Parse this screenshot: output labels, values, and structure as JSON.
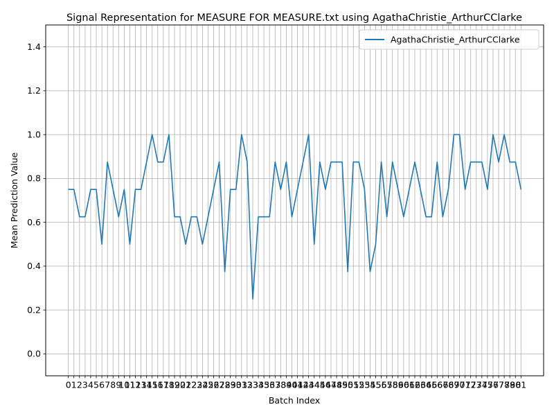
{
  "chart_data": {
    "type": "line",
    "title": "Signal Representation for MEASURE FOR MEASURE.txt using AgathaChristie_ArthurCClarke",
    "xlabel": "Batch Index",
    "ylabel": "Mean Prediction Value",
    "ylim": [
      -0.1,
      1.5
    ],
    "xlim": [
      -4.05,
      85.05
    ],
    "yticks": [
      0.0,
      0.2,
      0.4,
      0.6,
      0.8,
      1.0,
      1.2,
      1.4
    ],
    "grid": true,
    "legend_position": "top-right",
    "x": [
      0,
      1,
      2,
      3,
      4,
      5,
      6,
      7,
      8,
      9,
      10,
      11,
      12,
      13,
      14,
      15,
      16,
      17,
      18,
      19,
      20,
      21,
      22,
      23,
      24,
      25,
      26,
      27,
      28,
      29,
      30,
      31,
      32,
      33,
      34,
      35,
      36,
      37,
      38,
      39,
      40,
      41,
      42,
      43,
      44,
      45,
      46,
      47,
      48,
      49,
      50,
      51,
      52,
      53,
      54,
      55,
      56,
      57,
      58,
      59,
      60,
      61,
      62,
      63,
      64,
      65,
      66,
      67,
      68,
      69,
      70,
      71,
      72,
      73,
      74,
      75,
      76,
      77,
      78,
      79,
      80,
      81
    ],
    "series": [
      {
        "name": "AgathaChristie_ArthurCClarke",
        "color": "#1f77b4",
        "values": [
          0.75,
          0.75,
          0.625,
          0.625,
          0.75,
          0.75,
          0.5,
          0.875,
          0.75,
          0.625,
          0.75,
          0.5,
          0.75,
          0.75,
          0.875,
          1.0,
          0.875,
          0.875,
          1.0,
          0.625,
          0.625,
          0.5,
          0.625,
          0.625,
          0.5,
          0.625,
          0.75,
          0.875,
          0.375,
          0.75,
          0.75,
          1.0,
          0.875,
          0.25,
          0.625,
          0.625,
          0.625,
          0.875,
          0.75,
          0.875,
          0.625,
          0.75,
          0.875,
          1.0,
          0.5,
          0.875,
          0.75,
          0.875,
          0.875,
          0.875,
          0.375,
          0.875,
          0.875,
          0.75,
          0.375,
          0.5,
          0.875,
          0.625,
          0.875,
          0.75,
          0.625,
          0.75,
          0.875,
          0.75,
          0.625,
          0.625,
          0.875,
          0.625,
          0.75,
          1.0,
          1.0,
          0.75,
          0.875,
          0.875,
          0.875,
          0.75,
          1.0,
          0.875,
          1.0,
          0.875,
          0.875,
          0.75
        ]
      }
    ]
  }
}
